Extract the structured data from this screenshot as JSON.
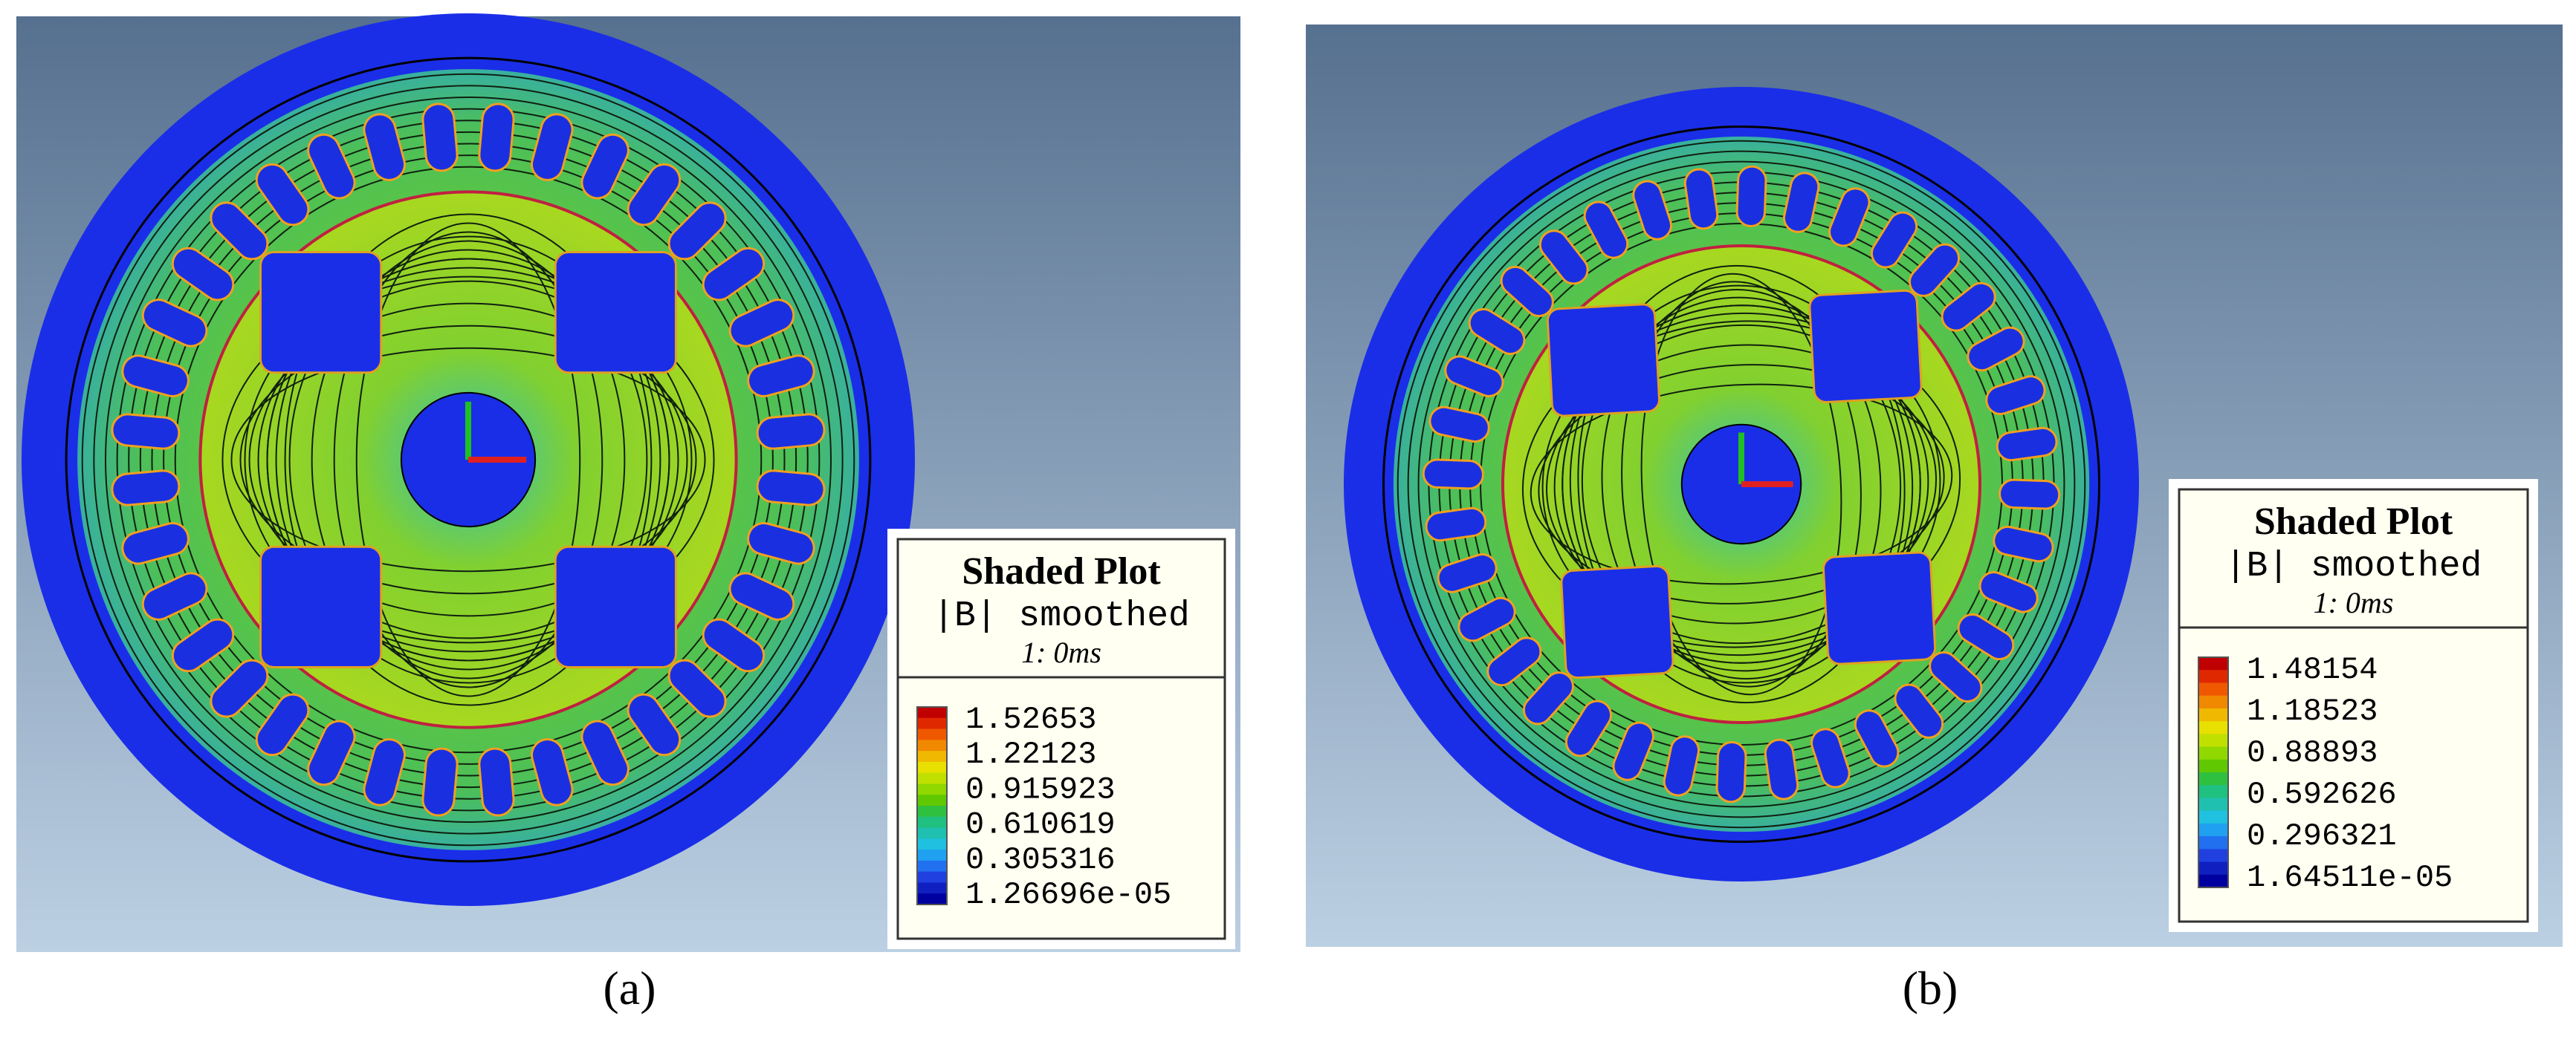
{
  "panels": [
    {
      "label": "(a)",
      "legend": {
        "title": "Shaded Plot",
        "quantity": "|B| smoothed",
        "time": "1: 0ms",
        "values": [
          "1.52653",
          "1.22123",
          "0.915923",
          "0.610619",
          "0.305316",
          "1.26696e-05"
        ]
      }
    },
    {
      "label": "(b)",
      "legend": {
        "title": "Shaded Plot",
        "quantity": "|B| smoothed",
        "time": "1: 0ms",
        "values": [
          "1.48154",
          "1.18523",
          "0.88893",
          "0.592626",
          "0.296321",
          "1.64511e-05"
        ]
      }
    }
  ]
}
